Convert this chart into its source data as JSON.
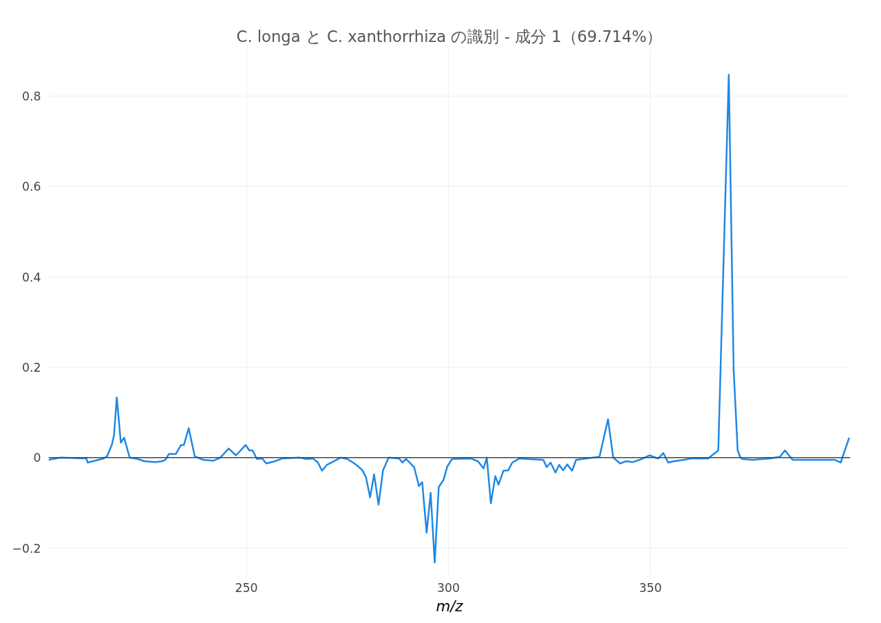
{
  "chart_data": {
    "type": "line",
    "title": "C. longa と C. xanthorrhiza の識別 - 成分 1（69.714%）",
    "xlabel": "m/z",
    "xlim": [
      201,
      399.5
    ],
    "ylim": [
      -0.26,
      0.905
    ],
    "xticks": [
      250,
      300,
      350
    ],
    "yticks": [
      {
        "value": -0.2,
        "label": "−0.2"
      },
      0,
      0.2,
      0.4,
      0.6,
      0.8
    ],
    "grid": true,
    "ref_lines": [
      {
        "axis": "y",
        "value": 0,
        "label": null,
        "color": "#444444"
      }
    ],
    "series": [
      {
        "color": "#1e88e5",
        "x": [
          201.0,
          203.9,
          210.4,
          210.7,
          214.6,
          215.5,
          216.7,
          217.2,
          217.9,
          218.9,
          219.7,
          221.1,
          223.1,
          224.8,
          227.4,
          229.1,
          229.9,
          230.8,
          232.5,
          233.8,
          234.5,
          235.7,
          237.2,
          239.3,
          241.8,
          243.5,
          245.6,
          247.4,
          249.8,
          250.7,
          251.5,
          252.6,
          253.9,
          254.9,
          257.1,
          258.8,
          263.1,
          264.8,
          266.5,
          267.7,
          268.7,
          269.9,
          273.3,
          275.0,
          277.2,
          278.7,
          279.6,
          280.6,
          281.6,
          282.7,
          283.8,
          285.2,
          287.8,
          288.6,
          289.5,
          291.5,
          292.7,
          293.5,
          294.6,
          295.6,
          296.6,
          297.6,
          298.8,
          299.7,
          300.9,
          305.6,
          307.3,
          308.7,
          309.5,
          310.5,
          311.6,
          312.4,
          313.6,
          314.8,
          315.8,
          317.5,
          319.6,
          323.5,
          324.3,
          325.3,
          326.5,
          327.4,
          328.4,
          329.4,
          330.6,
          331.6,
          337.4,
          339.5,
          340.8,
          342.5,
          343.9,
          345.6,
          347.3,
          349.8,
          351.9,
          353.2,
          354.4,
          355.8,
          358.3,
          360.0,
          364.3,
          366.8,
          369.4,
          370.6,
          371.6,
          372.3,
          372.8,
          375.3,
          379.6,
          382.1,
          383.3,
          385.2,
          389.0,
          395.7,
          397.1,
          399.2
        ],
        "values": [
          -0.005,
          0,
          -0.002,
          -0.011,
          -0.002,
          0.003,
          0.029,
          0.049,
          0.133,
          0.033,
          0.044,
          0,
          -0.003,
          -0.008,
          -0.01,
          -0.008,
          -0.005,
          0.008,
          0.008,
          0.028,
          0.028,
          0.065,
          0.003,
          -0.005,
          -0.007,
          0,
          0.02,
          0.005,
          0.028,
          0.016,
          0.016,
          -0.003,
          -0.002,
          -0.013,
          -0.008,
          -0.002,
          0,
          -0.003,
          -0.002,
          -0.011,
          -0.029,
          -0.016,
          0,
          -0.003,
          -0.016,
          -0.028,
          -0.044,
          -0.088,
          -0.037,
          -0.104,
          -0.028,
          0,
          -0.002,
          -0.011,
          -0.003,
          -0.021,
          -0.063,
          -0.054,
          -0.166,
          -0.078,
          -0.232,
          -0.065,
          -0.049,
          -0.02,
          -0.003,
          -0.002,
          -0.008,
          -0.024,
          0,
          -0.101,
          -0.041,
          -0.06,
          -0.029,
          -0.028,
          -0.011,
          -0.002,
          -0.003,
          -0.005,
          -0.021,
          -0.011,
          -0.033,
          -0.016,
          -0.028,
          -0.015,
          -0.029,
          -0.005,
          0.002,
          0.085,
          0,
          -0.013,
          -0.008,
          -0.01,
          -0.005,
          0.005,
          -0.002,
          0.01,
          -0.011,
          -0.008,
          -0.005,
          -0.002,
          -0.002,
          0.016,
          0.847,
          0.195,
          0.016,
          0,
          -0.003,
          -0.005,
          -0.002,
          0.002,
          0.016,
          -0.005,
          -0.005,
          -0.005,
          -0.011,
          0.044
        ]
      }
    ]
  }
}
